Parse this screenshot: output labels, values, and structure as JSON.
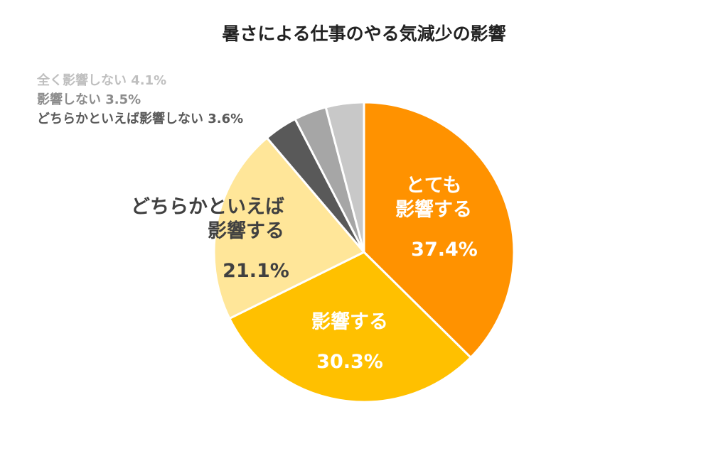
{
  "chart_data": {
    "type": "pie",
    "title": "暑さによる仕事のやる気減少の影響",
    "start_angle_deg": 0,
    "direction": "clockwise",
    "slices": [
      {
        "label_lines": [
          "とても",
          "影響する"
        ],
        "value": 37.4,
        "value_text": "37.4%",
        "color": "#FF9200",
        "label_color": "#FFFFFF"
      },
      {
        "label_lines": [
          "影響する"
        ],
        "value": 30.3,
        "value_text": "30.3%",
        "color": "#FFC000",
        "label_color": "#FFFFFF"
      },
      {
        "label_lines": [
          "どちらかといえば",
          "影響する"
        ],
        "value": 21.1,
        "value_text": "21.1%",
        "color": "#FFE699",
        "label_color": "#404040"
      },
      {
        "label": "どちらかといえば影響しない",
        "value": 3.6,
        "value_text": "3.6%",
        "color": "#595959",
        "label_color": "#595959"
      },
      {
        "label": "影響しない",
        "value": 3.5,
        "value_text": "3.5%",
        "color": "#A6A6A6",
        "label_color": "#8C8C8C"
      },
      {
        "label": "全く影響しない",
        "value": 4.1,
        "value_text": "4.1%",
        "color": "#C8C8C8",
        "label_color": "#BFBFBF"
      }
    ]
  }
}
